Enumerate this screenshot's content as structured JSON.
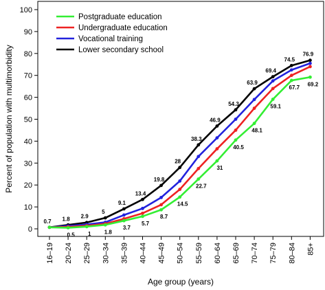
{
  "chart_data": {
    "type": "line",
    "xlabel": "Age group (years)",
    "ylabel": "Percent of population with multimorbidity",
    "ylim": [
      0,
      100
    ],
    "yticks": [
      0,
      10,
      20,
      30,
      40,
      50,
      60,
      70,
      80,
      90,
      100
    ],
    "grid": false,
    "legend_position": "top-left",
    "categories": [
      "16–19",
      "20–24",
      "25–29",
      "30–34",
      "35–39",
      "40–44",
      "45–49",
      "50–54",
      "55–59",
      "60–64",
      "65–69",
      "70–74",
      "75–79",
      "80–84",
      "85+"
    ],
    "series": [
      {
        "name": "Postgraduate education",
        "color": "#33ee33",
        "values": [
          0.7,
          0.5,
          1.0,
          1.8,
          3.7,
          5.7,
          8.7,
          14.5,
          22.7,
          31.0,
          40.5,
          48.1,
          59.1,
          67.7,
          69.2
        ],
        "labels": [
          "",
          "0.5",
          "1",
          "1.8",
          "3.7",
          "5.7",
          "8.7",
          "14.5",
          "22.7",
          "31",
          "40.5",
          "48.1",
          "59.1",
          "67.7",
          "69.2"
        ]
      },
      {
        "name": "Undergraduate education",
        "color": "#ee2222",
        "values": [
          0.7,
          0.9,
          1.4,
          2.3,
          4.6,
          7.1,
          11.0,
          18.0,
          27.5,
          36.5,
          45.0,
          55.0,
          64.0,
          70.0,
          74.0
        ],
        "labels": []
      },
      {
        "name": "Vocational training",
        "color": "#2222dd",
        "values": [
          0.7,
          1.3,
          2.0,
          3.0,
          6.3,
          9.3,
          14.3,
          21.8,
          33.0,
          41.5,
          50.0,
          59.0,
          67.5,
          72.5,
          75.5
        ],
        "labels": []
      },
      {
        "name": "Lower secondary school",
        "color": "#000000",
        "values": [
          0.7,
          1.8,
          2.9,
          5.0,
          9.1,
          13.4,
          19.8,
          28.0,
          38.3,
          46.9,
          54.3,
          63.9,
          69.4,
          74.5,
          76.9
        ],
        "labels": [
          "0.7",
          "1.8",
          "2.9",
          "5",
          "9.1",
          "13.4",
          "19.8",
          "28",
          "38.3",
          "46.9",
          "54.3",
          "63.9",
          "69.4",
          "74.5",
          "76.9"
        ]
      }
    ]
  }
}
